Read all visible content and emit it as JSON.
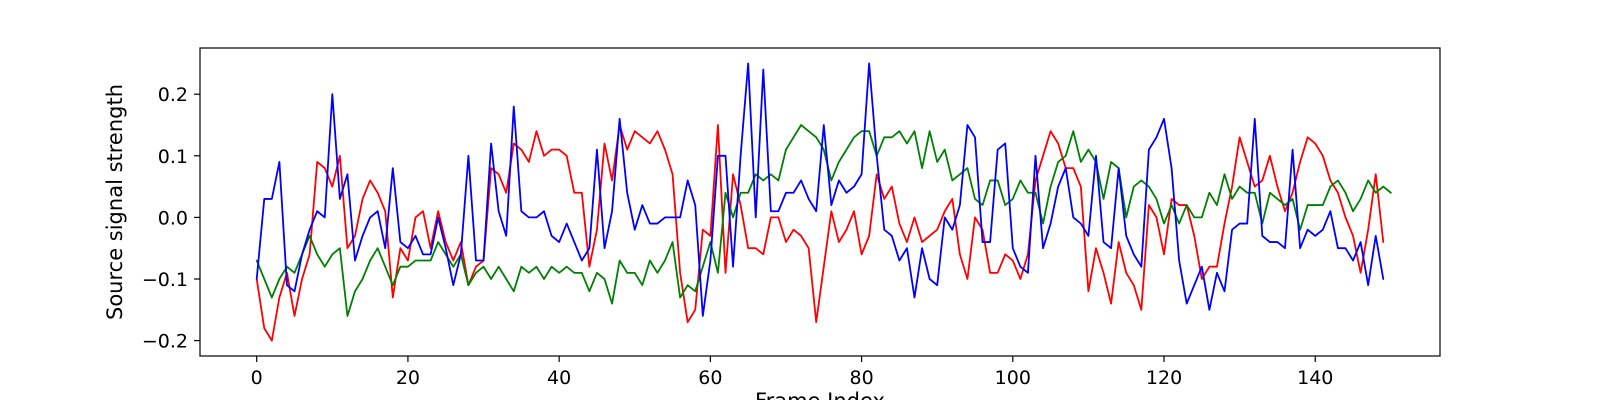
{
  "chart_data": {
    "type": "line",
    "title": "",
    "xlabel": "Frame Index",
    "ylabel": "Source signal strength",
    "xlim": [
      -7.5,
      156.5
    ],
    "ylim": [
      -0.225,
      0.275
    ],
    "x_ticks": [
      0,
      20,
      40,
      60,
      80,
      100,
      120,
      140
    ],
    "y_ticks": [
      -0.2,
      -0.1,
      0.0,
      0.1,
      0.2
    ],
    "y_tick_labels": [
      "−0.2",
      "−0.1",
      "0.0",
      "0.1",
      "0.2"
    ],
    "grid": false,
    "legend": "none",
    "series": [
      {
        "color": "#ff0000",
        "values": [
          -0.1,
          -0.18,
          -0.2,
          -0.13,
          -0.09,
          -0.16,
          -0.1,
          -0.06,
          0.09,
          0.08,
          0.05,
          0.1,
          -0.05,
          -0.03,
          0.03,
          0.06,
          0.04,
          0.01,
          -0.13,
          -0.05,
          -0.07,
          0.0,
          0.01,
          -0.05,
          0.01,
          -0.04,
          -0.07,
          -0.04,
          -0.11,
          -0.08,
          -0.07,
          0.08,
          0.07,
          0.04,
          0.12,
          0.11,
          0.09,
          0.14,
          0.1,
          0.11,
          0.11,
          0.1,
          0.04,
          0.04,
          -0.08,
          -0.02,
          0.12,
          0.06,
          0.15,
          0.11,
          0.14,
          0.13,
          0.12,
          0.14,
          0.11,
          0.07,
          -0.09,
          -0.17,
          -0.15,
          -0.02,
          -0.03,
          0.15,
          -0.09,
          0.07,
          0.02,
          -0.05,
          -0.05,
          -0.06,
          0.0,
          0.0,
          -0.04,
          -0.02,
          -0.03,
          -0.05,
          -0.17,
          -0.08,
          0.01,
          -0.04,
          -0.02,
          0.01,
          -0.06,
          -0.03,
          0.07,
          0.03,
          0.05,
          -0.01,
          -0.04,
          0.0,
          -0.04,
          -0.03,
          -0.02,
          0.01,
          0.03,
          -0.06,
          -0.1,
          0.0,
          -0.02,
          -0.09,
          -0.09,
          -0.06,
          -0.07,
          -0.1,
          -0.06,
          0.06,
          0.1,
          0.14,
          0.12,
          0.08,
          0.08,
          0.05,
          -0.12,
          -0.05,
          -0.09,
          -0.14,
          -0.04,
          -0.09,
          -0.11,
          -0.15,
          0.02,
          0.0,
          -0.06,
          0.03,
          0.02,
          0.02,
          -0.03,
          -0.1,
          -0.08,
          -0.08,
          -0.01,
          0.05,
          0.13,
          0.09,
          0.05,
          0.06,
          0.1,
          0.05,
          0.01,
          0.04,
          0.09,
          0.13,
          0.12,
          0.1,
          0.06,
          0.04,
          0.0,
          -0.03,
          -0.09,
          -0.02,
          0.07,
          -0.04
        ]
      },
      {
        "color": "#008000",
        "values": [
          -0.07,
          -0.1,
          -0.13,
          -0.1,
          -0.08,
          -0.09,
          -0.06,
          -0.03,
          -0.06,
          -0.08,
          -0.06,
          -0.05,
          -0.16,
          -0.12,
          -0.1,
          -0.07,
          -0.05,
          -0.08,
          -0.11,
          -0.08,
          -0.08,
          -0.07,
          -0.07,
          -0.07,
          -0.04,
          -0.06,
          -0.08,
          -0.06,
          -0.11,
          -0.09,
          -0.08,
          -0.1,
          -0.08,
          -0.1,
          -0.12,
          -0.08,
          -0.09,
          -0.08,
          -0.1,
          -0.08,
          -0.09,
          -0.08,
          -0.09,
          -0.09,
          -0.12,
          -0.09,
          -0.1,
          -0.14,
          -0.07,
          -0.09,
          -0.09,
          -0.11,
          -0.07,
          -0.09,
          -0.07,
          -0.04,
          -0.13,
          -0.11,
          -0.12,
          -0.08,
          -0.04,
          -0.09,
          0.04,
          0.0,
          0.04,
          0.04,
          0.07,
          0.06,
          0.07,
          0.06,
          0.11,
          0.13,
          0.15,
          0.14,
          0.13,
          0.11,
          0.06,
          0.09,
          0.11,
          0.13,
          0.14,
          0.14,
          0.1,
          0.13,
          0.13,
          0.14,
          0.12,
          0.14,
          0.08,
          0.14,
          0.09,
          0.11,
          0.06,
          0.07,
          0.08,
          0.03,
          0.02,
          0.06,
          0.06,
          0.02,
          0.03,
          0.06,
          0.04,
          0.04,
          -0.01,
          0.05,
          0.09,
          0.1,
          0.14,
          0.09,
          0.11,
          0.09,
          0.03,
          0.09,
          0.08,
          0.0,
          0.05,
          0.06,
          0.05,
          0.03,
          -0.01,
          0.02,
          -0.01,
          0.02,
          0.0,
          0.0,
          0.04,
          0.02,
          0.07,
          0.03,
          0.05,
          0.04,
          0.04,
          -0.01,
          0.04,
          0.03,
          0.02,
          0.03,
          -0.02,
          0.02,
          0.02,
          0.02,
          0.05,
          0.06,
          0.04,
          0.01,
          0.03,
          0.06,
          0.04,
          0.05,
          0.04
        ]
      },
      {
        "color": "#0000ff",
        "values": [
          -0.1,
          0.03,
          0.03,
          0.09,
          -0.11,
          -0.12,
          -0.06,
          -0.02,
          0.01,
          0.0,
          0.2,
          0.03,
          0.07,
          -0.07,
          -0.03,
          0.0,
          0.01,
          -0.05,
          0.08,
          -0.04,
          -0.05,
          -0.03,
          -0.06,
          -0.06,
          0.0,
          -0.05,
          -0.11,
          -0.06,
          0.1,
          -0.07,
          -0.07,
          0.12,
          0.01,
          -0.03,
          0.18,
          0.01,
          0.0,
          0.0,
          0.01,
          -0.03,
          -0.04,
          -0.01,
          -0.04,
          -0.07,
          -0.05,
          0.11,
          -0.05,
          0.01,
          0.16,
          0.04,
          -0.02,
          0.02,
          -0.01,
          -0.01,
          0.0,
          0.0,
          0.0,
          0.06,
          0.02,
          -0.16,
          -0.07,
          0.1,
          0.1,
          -0.08,
          0.1,
          0.25,
          0.0,
          0.24,
          0.01,
          0.01,
          0.04,
          0.04,
          0.06,
          0.03,
          0.01,
          0.15,
          0.02,
          0.06,
          0.04,
          0.05,
          0.07,
          0.25,
          0.1,
          -0.02,
          -0.03,
          -0.07,
          -0.05,
          -0.13,
          -0.05,
          -0.1,
          -0.11,
          0.0,
          -0.02,
          0.02,
          0.15,
          0.13,
          -0.04,
          -0.04,
          0.11,
          0.12,
          -0.05,
          -0.08,
          -0.09,
          0.1,
          -0.05,
          -0.01,
          0.05,
          0.08,
          0.0,
          -0.01,
          -0.03,
          0.1,
          -0.04,
          -0.05,
          0.08,
          -0.03,
          -0.06,
          -0.08,
          0.11,
          0.13,
          0.16,
          0.08,
          -0.07,
          -0.14,
          -0.11,
          -0.08,
          -0.15,
          -0.09,
          -0.12,
          -0.02,
          -0.01,
          -0.01,
          0.16,
          -0.03,
          -0.04,
          -0.04,
          -0.05,
          0.11,
          -0.05,
          -0.02,
          -0.03,
          -0.02,
          0.01,
          -0.05,
          -0.05,
          -0.07,
          -0.04,
          -0.11,
          -0.03,
          -0.1
        ]
      }
    ]
  }
}
